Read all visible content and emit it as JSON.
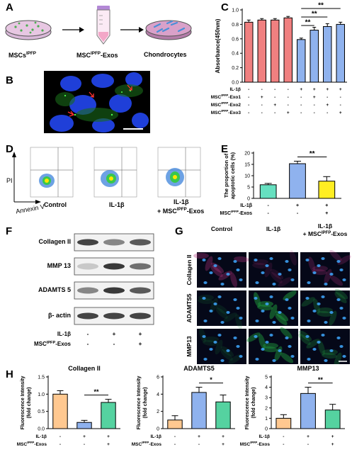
{
  "panels": {
    "A": {
      "letter": "A",
      "step1": "MSCs",
      "step1_sup": "IPFP",
      "step2": "MSC",
      "step2_sup": "IPFP",
      "step2_suffix": "-Exos",
      "step3": "Chondrocytes"
    },
    "B": {
      "letter": "B"
    },
    "C": {
      "letter": "C"
    },
    "D": {
      "letter": "D",
      "y_label": "PI",
      "x_label": "Annexin V",
      "groups": [
        "Control",
        "IL-1β",
        "IL-1β"
      ],
      "group3_line2": "+ MSC",
      "group3_sup": "IPFP",
      "group3_suffix": "-Exos"
    },
    "E": {
      "letter": "E"
    },
    "F": {
      "letter": "F",
      "bands": [
        "Collagen II",
        "MMP 13",
        "ADAMTS 5",
        "β- actin"
      ],
      "rows": [
        {
          "label": "IL-1β",
          "values": [
            "-",
            "+",
            "+"
          ]
        },
        {
          "label": "MSC",
          "sup": "IPFP",
          "suffix": "-Exos",
          "values": [
            "-",
            "-",
            "+"
          ]
        }
      ]
    },
    "G": {
      "letter": "G",
      "cols": [
        "Control",
        "IL-1β",
        "IL-1β"
      ],
      "col3_line2": "+ MSC",
      "col3_sup": "IPFP",
      "col3_suffix": "-Exos",
      "rows": [
        "Collagen II",
        "ADAMTS5",
        "MMP13"
      ]
    },
    "H": {
      "letter": "H"
    }
  },
  "chart_data": [
    {
      "id": "C",
      "type": "bar",
      "ylabel": "Absorbance(450nm)",
      "ylim": [
        0.0,
        1.0
      ],
      "yticks": [
        "0.0",
        "0.2",
        "0.4",
        "0.6",
        "0.8",
        "1.0"
      ],
      "values": [
        0.83,
        0.86,
        0.86,
        0.89,
        0.59,
        0.72,
        0.77,
        0.8
      ],
      "errors": [
        0.03,
        0.02,
        0.02,
        0.02,
        0.02,
        0.04,
        0.04,
        0.03
      ],
      "colors": [
        "#f08080",
        "#f08080",
        "#f08080",
        "#f08080",
        "#8fb2ee",
        "#8fb2ee",
        "#8fb2ee",
        "#8fb2ee"
      ],
      "rows": [
        {
          "label": "IL-1β",
          "values": [
            "-",
            "-",
            "-",
            "-",
            "+",
            "+",
            "+",
            "+"
          ]
        },
        {
          "label": "MSC",
          "sup": "IPFP",
          "suffix": "-Exo1",
          "values": [
            "-",
            "+",
            "-",
            "-",
            "-",
            "+",
            "-",
            "-"
          ]
        },
        {
          "label": "MSC",
          "sup": "IPFP",
          "suffix": "-Exo2",
          "values": [
            "-",
            "-",
            "+",
            "-",
            "-",
            "-",
            "+",
            "-"
          ]
        },
        {
          "label": "MSC",
          "sup": "IPFP",
          "suffix": "-Exo3",
          "values": [
            "-",
            "-",
            "-",
            "+",
            "-",
            "-",
            "-",
            "+"
          ]
        }
      ],
      "significance": [
        {
          "from": 4,
          "to": 5,
          "label": "**"
        },
        {
          "from": 4,
          "to": 6,
          "label": "**"
        },
        {
          "from": 4,
          "to": 7,
          "label": "**"
        }
      ]
    },
    {
      "id": "E",
      "type": "bar",
      "ylabel": "The proportion of apoptotic cells (%)",
      "ylim": [
        0,
        20
      ],
      "yticks": [
        "0",
        "5",
        "10",
        "15",
        "20"
      ],
      "values": [
        6.0,
        15.3,
        7.6
      ],
      "errors": [
        0.6,
        1.1,
        2.0
      ],
      "colors": [
        "#66e0c0",
        "#8fb2ee",
        "#ffee22"
      ],
      "rows": [
        {
          "label": "IL-1β",
          "values": [
            "-",
            "+",
            "+"
          ]
        },
        {
          "label": "MSC",
          "sup": "IPFP",
          "suffix": "-Exos",
          "values": [
            "-",
            "-",
            "+"
          ]
        }
      ],
      "significance": [
        {
          "from": 1,
          "to": 2,
          "label": "**"
        }
      ]
    },
    {
      "id": "H1",
      "type": "bar",
      "title": "Collagen II",
      "ylabel": "Fluorescence Intensity (fold change)",
      "ylim": [
        0.0,
        1.5
      ],
      "yticks": [
        "0.0",
        "0.5",
        "1.0",
        "1.5"
      ],
      "values": [
        1.0,
        0.18,
        0.76
      ],
      "errors": [
        0.1,
        0.06,
        0.09
      ],
      "colors": [
        "#ffc890",
        "#8fb2ee",
        "#55d2a0"
      ],
      "rows": [
        {
          "label": "IL-1β",
          "values": [
            "-",
            "+",
            "+"
          ]
        },
        {
          "label": "MSC",
          "sup": "IPFP",
          "suffix": "-Exos",
          "values": [
            "-",
            "-",
            "+"
          ]
        }
      ],
      "significance": [
        {
          "from": 1,
          "to": 2,
          "label": "**"
        }
      ]
    },
    {
      "id": "H2",
      "type": "bar",
      "title": "ADAMTS5",
      "ylabel": "Fluorescence Intensity (fold change)",
      "ylim": [
        0,
        6
      ],
      "yticks": [
        "0",
        "2",
        "4",
        "6"
      ],
      "values": [
        1.0,
        4.2,
        3.1
      ],
      "errors": [
        0.5,
        0.6,
        0.8
      ],
      "colors": [
        "#ffc890",
        "#8fb2ee",
        "#55d2a0"
      ],
      "rows": [
        {
          "label": "IL-1β",
          "values": [
            "-",
            "+",
            "+"
          ]
        },
        {
          "label": "MSC",
          "sup": "IPFP",
          "suffix": "-Exos",
          "values": [
            "-",
            "-",
            "+"
          ]
        }
      ],
      "significance": [
        {
          "from": 1,
          "to": 2,
          "label": "*"
        }
      ]
    },
    {
      "id": "H3",
      "type": "bar",
      "title": "MMP13",
      "ylabel": "Fluorescence Intensity (fold change)",
      "ylim": [
        0,
        5
      ],
      "yticks": [
        "0",
        "1",
        "2",
        "3",
        "4",
        "5"
      ],
      "values": [
        1.0,
        3.4,
        1.8
      ],
      "errors": [
        0.35,
        0.6,
        0.55
      ],
      "colors": [
        "#ffc890",
        "#8fb2ee",
        "#55d2a0"
      ],
      "rows": [
        {
          "label": "IL-1β",
          "values": [
            "-",
            "+",
            "+"
          ]
        },
        {
          "label": "MSC",
          "sup": "IPFP",
          "suffix": "-Exos",
          "values": [
            "-",
            "-",
            "+"
          ]
        }
      ],
      "significance": [
        {
          "from": 1,
          "to": 2,
          "label": "**"
        }
      ]
    }
  ]
}
